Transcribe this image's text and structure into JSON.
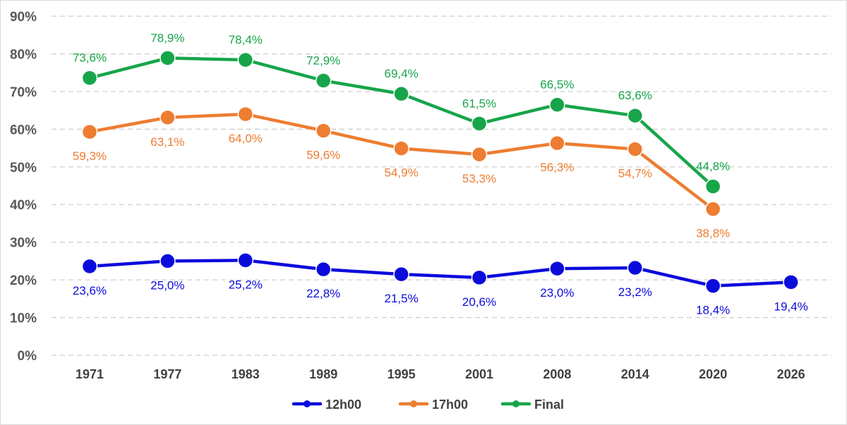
{
  "chart_data": {
    "type": "line",
    "title": "",
    "xlabel": "",
    "ylabel": "",
    "ylim": [
      0,
      90
    ],
    "yticks": [
      "0%",
      "10%",
      "20%",
      "30%",
      "40%",
      "50%",
      "60%",
      "70%",
      "80%",
      "90%"
    ],
    "categories": [
      "1971",
      "1977",
      "1983",
      "1989",
      "1995",
      "2001",
      "2008",
      "2014",
      "2020",
      "2026"
    ],
    "grid": true,
    "legend_position": "bottom",
    "series": [
      {
        "name": "12h00",
        "color": "#0b0bdc",
        "values": [
          23.6,
          25.0,
          25.2,
          22.8,
          21.5,
          20.6,
          23.0,
          23.2,
          18.4,
          19.4
        ],
        "labels": [
          "23,6%",
          "25,0%",
          "25,2%",
          "22,8%",
          "21,5%",
          "20,6%",
          "23,0%",
          "23,2%",
          "18,4%",
          "19,4%"
        ],
        "label_position": "below"
      },
      {
        "name": "17h00",
        "color": "#ed7d31",
        "values": [
          59.3,
          63.1,
          64.0,
          59.6,
          54.9,
          53.3,
          56.3,
          54.7,
          38.8,
          null
        ],
        "labels": [
          "59,3%",
          "63,1%",
          "64,0%",
          "59,6%",
          "54,9%",
          "53,3%",
          "56,3%",
          "54,7%",
          "38,8%",
          ""
        ],
        "label_position": "below"
      },
      {
        "name": "Final",
        "color": "#17a54a",
        "values": [
          73.6,
          78.9,
          78.4,
          72.9,
          69.4,
          61.5,
          66.5,
          63.6,
          44.8,
          null
        ],
        "labels": [
          "73,6%",
          "78,9%",
          "78,4%",
          "72,9%",
          "69,4%",
          "61,5%",
          "66,5%",
          "63,6%",
          "44,8%",
          ""
        ],
        "label_position": "above"
      }
    ]
  }
}
